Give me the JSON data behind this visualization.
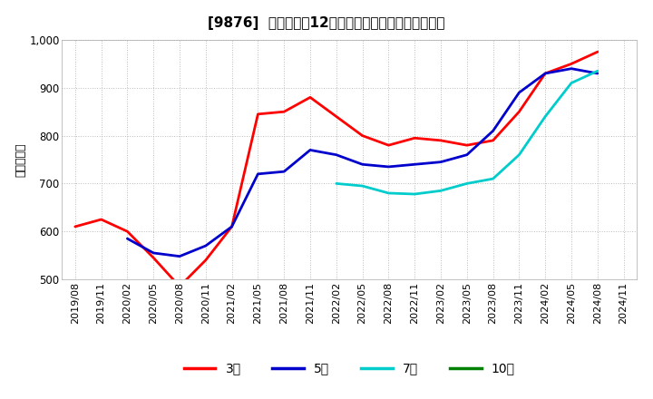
{
  "title": "[9876]  当期純利益12か月移動合計の標準偏差の推移",
  "ylabel": "（百万円）",
  "ylim": [
    500,
    1000
  ],
  "yticks": [
    500,
    600,
    700,
    800,
    900,
    1000
  ],
  "background_color": "#ffffff",
  "plot_bg_color": "#ffffff",
  "grid_color": "#aaaaaa",
  "series": {
    "3年": {
      "color": "#ff0000",
      "x": [
        "2019/08",
        "2019/11",
        "2020/02",
        "2020/05",
        "2020/08",
        "2020/11",
        "2021/02",
        "2021/05",
        "2021/08",
        "2021/11",
        "2022/02",
        "2022/05",
        "2022/08",
        "2022/11",
        "2023/02",
        "2023/05",
        "2023/08",
        "2023/11",
        "2024/02",
        "2024/05",
        "2024/08"
      ],
      "y": [
        610,
        625,
        600,
        545,
        485,
        540,
        610,
        845,
        850,
        880,
        840,
        800,
        780,
        795,
        790,
        780,
        790,
        850,
        930,
        950,
        975
      ]
    },
    "5年": {
      "color": "#0000cc",
      "x": [
        "2020/02",
        "2020/05",
        "2020/08",
        "2020/11",
        "2021/02",
        "2021/05",
        "2021/08",
        "2021/11",
        "2022/02",
        "2022/05",
        "2022/08",
        "2022/11",
        "2023/02",
        "2023/05",
        "2023/08",
        "2023/11",
        "2024/02",
        "2024/05",
        "2024/08"
      ],
      "y": [
        585,
        555,
        548,
        570,
        610,
        720,
        725,
        770,
        760,
        740,
        735,
        740,
        745,
        760,
        810,
        890,
        930,
        940,
        930
      ]
    },
    "7年": {
      "color": "#00cccc",
      "x": [
        "2022/02",
        "2022/05",
        "2022/08",
        "2022/11",
        "2023/02",
        "2023/05",
        "2023/08",
        "2023/11",
        "2024/02",
        "2024/05",
        "2024/08"
      ],
      "y": [
        700,
        695,
        680,
        678,
        685,
        700,
        710,
        760,
        840,
        910,
        935
      ]
    },
    "10年": {
      "color": "#008000",
      "x": [],
      "y": []
    }
  },
  "x_ticks": [
    "2019/08",
    "2019/11",
    "2020/02",
    "2020/05",
    "2020/08",
    "2020/11",
    "2021/02",
    "2021/05",
    "2021/08",
    "2021/11",
    "2022/02",
    "2022/05",
    "2022/08",
    "2022/11",
    "2023/02",
    "2023/05",
    "2023/08",
    "2023/11",
    "2024/02",
    "2024/05",
    "2024/08",
    "2024/11"
  ],
  "legend_labels": [
    "3年",
    "5年",
    "7年",
    "10年"
  ],
  "legend_colors": [
    "#ff0000",
    "#0000cc",
    "#00cccc",
    "#008000"
  ],
  "title_fontsize": 11,
  "tick_fontsize": 8,
  "ylabel_fontsize": 9,
  "legend_fontsize": 10,
  "linewidth": 2.0
}
